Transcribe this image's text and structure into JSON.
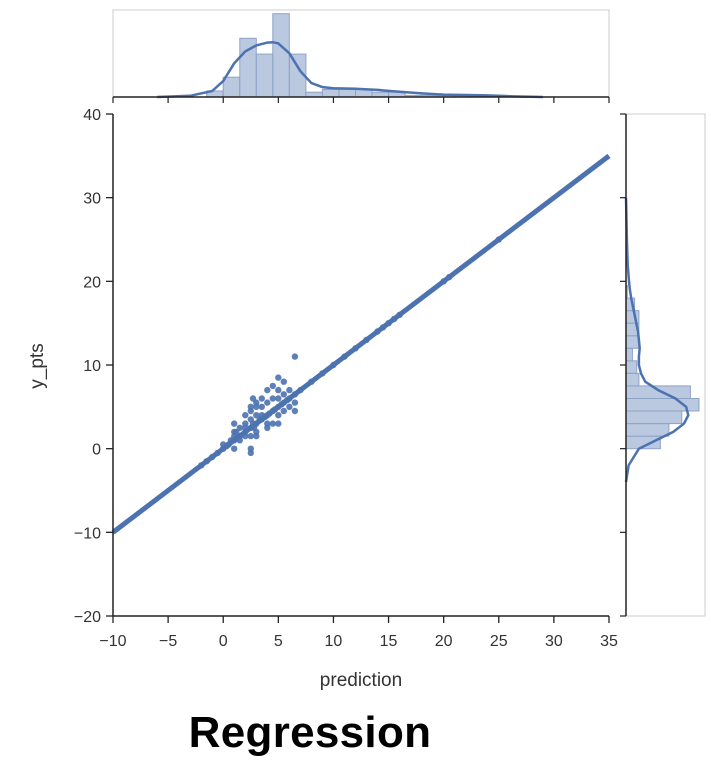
{
  "caption": "Regression",
  "colors": {
    "series": "#4c72b0",
    "fill": "#a9bad8",
    "axis": "#222222",
    "text": "#333333"
  },
  "chart_data": {
    "type": "scatter",
    "xlabel": "prediction",
    "ylabel": "y_pts",
    "xlim": [
      -10,
      35
    ],
    "ylim": [
      -20,
      40
    ],
    "xticks": [
      -10,
      -5,
      0,
      5,
      10,
      15,
      20,
      25,
      30,
      35
    ],
    "yticks": [
      -20,
      -10,
      0,
      10,
      20,
      30,
      40
    ],
    "xtick_labels": [
      "−10",
      "−5",
      "0",
      "5",
      "10",
      "15",
      "20",
      "25",
      "30",
      "35"
    ],
    "ytick_labels": [
      "−20",
      "−10",
      "0",
      "10",
      "20",
      "30",
      "40"
    ],
    "grid": false,
    "regression_line": {
      "x": [
        -10,
        35
      ],
      "y": [
        -10,
        35
      ]
    },
    "points": {
      "x": [
        -2,
        -1.5,
        -1,
        -0.5,
        0,
        0,
        0.3,
        0.5,
        0.7,
        1,
        1,
        1,
        1,
        1,
        1.2,
        1.2,
        1.5,
        1.5,
        1.5,
        2,
        2,
        2,
        2,
        2,
        2.5,
        2.5,
        2.5,
        2.5,
        2.5,
        2.5,
        2.5,
        2.7,
        2.7,
        2.8,
        3,
        3,
        3,
        3,
        3,
        3,
        3.3,
        3.5,
        3.5,
        3.5,
        3.5,
        3.8,
        4,
        4,
        4,
        4,
        4,
        4.2,
        4.5,
        4.5,
        4.5,
        4.5,
        4.7,
        5,
        5,
        5,
        5,
        5,
        5,
        5.3,
        5.5,
        5.5,
        5.5,
        5.5,
        5.8,
        6,
        6,
        6,
        6.5,
        6.5,
        6.5,
        6.5,
        7,
        8,
        9,
        10,
        11,
        12,
        13,
        14,
        14.5,
        15,
        15.5,
        16,
        20,
        20.5,
        25
      ],
      "y": [
        -2,
        -1.5,
        -1,
        -0.5,
        0,
        0.5,
        0.3,
        0.5,
        1,
        1,
        0,
        2,
        3,
        1.5,
        1.2,
        2,
        1.5,
        2.5,
        1,
        2,
        3,
        1.5,
        2.5,
        4,
        2.5,
        0,
        -0.5,
        4.5,
        5,
        3.5,
        1.5,
        3,
        6,
        2.5,
        3,
        5,
        4,
        2,
        5.5,
        1.5,
        3.5,
        3.5,
        4,
        5,
        6,
        3.8,
        4,
        3,
        5.5,
        7,
        2.5,
        4.2,
        4.5,
        6,
        7.5,
        3,
        4.7,
        5,
        6,
        4,
        3,
        7,
        8.5,
        5.3,
        5.5,
        6.5,
        4.5,
        8,
        5.8,
        6,
        5,
        7,
        6.5,
        4.5,
        5.5,
        11,
        7,
        8,
        9,
        10,
        11,
        12,
        13,
        14,
        14.5,
        15,
        15.5,
        16,
        20,
        20.5,
        25
      ]
    },
    "marginal_x": {
      "type": "histogram+kde",
      "bin_edges": [
        -1.5,
        0,
        1.5,
        3,
        4.5,
        6,
        7.5,
        9,
        10.5,
        12,
        13.5,
        15,
        16.5,
        18,
        19.5,
        21,
        22.5,
        24,
        25.5
      ],
      "density": [
        0.015,
        0.05,
        0.148,
        0.108,
        0.21,
        0.108,
        0.012,
        0.019,
        0.019,
        0.019,
        0.012,
        0.012,
        0.004,
        0.004,
        0.004,
        0.004,
        0.004,
        0.004
      ],
      "kde_x": [
        -6,
        -3,
        -1,
        0,
        1,
        2,
        3,
        4,
        4.5,
        5,
        6,
        7,
        8,
        9,
        10,
        12,
        14,
        16,
        18,
        20,
        22,
        24,
        26,
        29
      ],
      "kde_y": [
        0.0,
        0.003,
        0.015,
        0.04,
        0.085,
        0.115,
        0.13,
        0.137,
        0.138,
        0.135,
        0.11,
        0.065,
        0.035,
        0.025,
        0.022,
        0.021,
        0.018,
        0.013,
        0.009,
        0.006,
        0.005,
        0.004,
        0.002,
        0.0
      ]
    },
    "marginal_y": {
      "type": "histogram+kde",
      "bin_edges": [
        0,
        1.5,
        3,
        4.5,
        6,
        7.5,
        9,
        10.5,
        12,
        13.5,
        15,
        16.5,
        18,
        19.5
      ],
      "density": [
        0.08,
        0.1,
        0.13,
        0.17,
        0.15,
        0.03,
        0.025,
        0.015,
        0.03,
        0.03,
        0.03,
        0.02,
        0.003
      ],
      "kde_y": [
        -4,
        -2,
        0,
        1,
        2,
        3,
        4,
        5,
        6,
        7,
        8,
        9,
        10,
        11,
        12,
        13,
        14,
        15,
        16,
        17,
        18,
        19,
        20,
        22,
        25,
        28,
        30
      ],
      "kde_x": [
        0.0,
        0.006,
        0.03,
        0.07,
        0.11,
        0.135,
        0.145,
        0.14,
        0.115,
        0.075,
        0.045,
        0.035,
        0.03,
        0.03,
        0.032,
        0.03,
        0.028,
        0.024,
        0.02,
        0.016,
        0.012,
        0.009,
        0.007,
        0.004,
        0.002,
        0.001,
        0.0
      ]
    }
  }
}
